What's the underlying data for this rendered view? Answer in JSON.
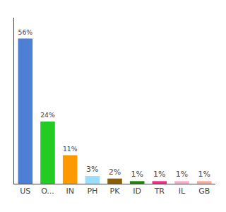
{
  "chart_data": {
    "type": "bar",
    "categories": [
      "US",
      "O...",
      "IN",
      "PH",
      "PK",
      "ID",
      "TR",
      "IL",
      "GB"
    ],
    "values": [
      56,
      24,
      11,
      3,
      2,
      1,
      1,
      1,
      1
    ],
    "value_labels": [
      "56%",
      "24%",
      "11%",
      "3%",
      "2%",
      "1%",
      "1%",
      "1%",
      "1%"
    ],
    "colors": [
      "#4d7fd4",
      "#22cc22",
      "#ff9900",
      "#99ddff",
      "#8B5E00",
      "#1a8800",
      "#ff2288",
      "#ffaacc",
      "#ffaa99"
    ],
    "ylim": [
      0,
      64
    ],
    "data_labels": true,
    "tick_labels": "x",
    "grid": false
  }
}
